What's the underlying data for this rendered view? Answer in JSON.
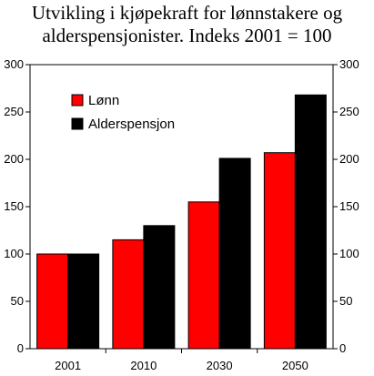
{
  "chart_data": {
    "type": "bar",
    "title_lines": [
      "Utvikling i kjøpekraft for lønnstakere og",
      "alderspensjonister. Indeks 2001 = 100"
    ],
    "categories": [
      "2001",
      "2010",
      "2030",
      "2050"
    ],
    "series": [
      {
        "name": "Lønn",
        "color": "#ff0000",
        "values": [
          100,
          115,
          155,
          207
        ]
      },
      {
        "name": "Alderspensjon",
        "color": "#000000",
        "values": [
          100,
          130,
          201,
          268
        ]
      }
    ],
    "ylim": [
      0,
      300
    ],
    "yticks": [
      0,
      50,
      100,
      150,
      200,
      250,
      300
    ],
    "secondary_y_axis": true,
    "grid": false,
    "legend_position": "top-left"
  }
}
